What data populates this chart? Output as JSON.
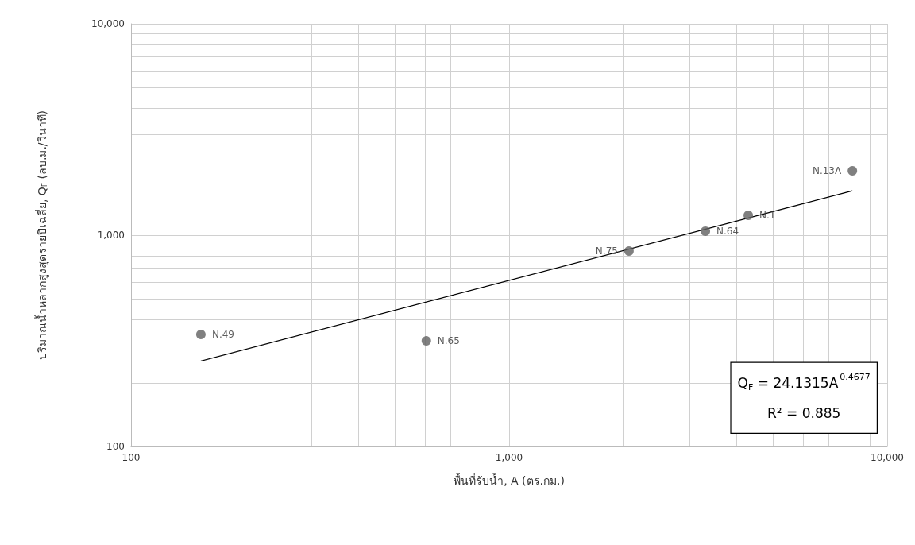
{
  "chart_data": {
    "type": "scatter",
    "xlabel": "พื้นที่รับน้ำ, A (ตร.กม.)",
    "ylabel": "ปริมาณน้ำหลากสูงสุดรายปีเฉลี่ย, Q$_{F}$ (ลบ.ม./วินาที)",
    "log": "xy",
    "grid": true,
    "marker": "circle",
    "xlim": [
      100,
      10000
    ],
    "ylim": [
      100,
      10000
    ],
    "xticks": [
      {
        "value": 100,
        "label": "100"
      },
      {
        "value": 200,
        "label": null
      },
      {
        "value": 300,
        "label": null
      },
      {
        "value": 400,
        "label": null
      },
      {
        "value": 500,
        "label": null
      },
      {
        "value": 600,
        "label": null
      },
      {
        "value": 700,
        "label": null
      },
      {
        "value": 800,
        "label": null
      },
      {
        "value": 900,
        "label": null
      },
      {
        "value": 1000,
        "label": "1,000"
      },
      {
        "value": 2000,
        "label": null
      },
      {
        "value": 3000,
        "label": null
      },
      {
        "value": 4000,
        "label": null
      },
      {
        "value": 5000,
        "label": null
      },
      {
        "value": 6000,
        "label": null
      },
      {
        "value": 7000,
        "label": null
      },
      {
        "value": 8000,
        "label": null
      },
      {
        "value": 9000,
        "label": null
      },
      {
        "value": 10000,
        "label": "10,000"
      }
    ],
    "yticks": [
      {
        "value": 100,
        "label": "100"
      },
      {
        "value": 200,
        "label": null
      },
      {
        "value": 300,
        "label": null
      },
      {
        "value": 400,
        "label": null
      },
      {
        "value": 500,
        "label": null
      },
      {
        "value": 600,
        "label": null
      },
      {
        "value": 700,
        "label": null
      },
      {
        "value": 800,
        "label": null
      },
      {
        "value": 900,
        "label": null
      },
      {
        "value": 1000,
        "label": "1,000"
      },
      {
        "value": 2000,
        "label": null
      },
      {
        "value": 3000,
        "label": null
      },
      {
        "value": 4000,
        "label": null
      },
      {
        "value": 5000,
        "label": null
      },
      {
        "value": 6000,
        "label": null
      },
      {
        "value": 7000,
        "label": null
      },
      {
        "value": 8000,
        "label": null
      },
      {
        "value": 9000,
        "label": null
      },
      {
        "value": 10000,
        "label": "10,000"
      }
    ],
    "series": [
      {
        "color": "#606060",
        "x": [
          153,
          604,
          2075,
          3304,
          4290,
          8090
        ],
        "values": [
          339,
          316,
          841,
          1044,
          1242,
          2017
        ],
        "value_labels": [
          "N.49",
          "N.65",
          "N.75",
          "N.64",
          "N.1",
          "N.13A"
        ]
      },
      {
        "type": "line",
        "color": "#000000",
        "marker": "none",
        "x": [
          153,
          8090
        ],
        "values": [
          254,
          1622
        ]
      }
    ],
    "annotations": [
      "Q$_{F}$ = 24.1315A$^{0.4677}$",
      "R² = 0.885"
    ]
  }
}
